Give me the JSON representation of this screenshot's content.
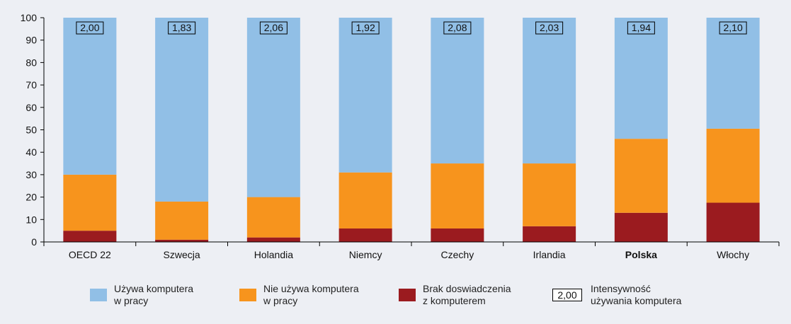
{
  "chart_data": {
    "type": "bar",
    "stacked": true,
    "categories": [
      "OECD 22",
      "Szwecja",
      "Holandia",
      "Niemcy",
      "Czechy",
      "Irlandia",
      "Polska",
      "Włochy"
    ],
    "highlight_category": "Polska",
    "series": [
      {
        "name_lines": [
          "Brak doswiadczenia",
          "z komputerem"
        ],
        "color": "#9b1b1f",
        "values": [
          5,
          1,
          2,
          6,
          6,
          7,
          13,
          17.5
        ]
      },
      {
        "name_lines": [
          "Nie używa komputera",
          "w pracy"
        ],
        "color": "#f7941d",
        "values": [
          25,
          17,
          18,
          25,
          29,
          28,
          33,
          33
        ]
      },
      {
        "name_lines": [
          "Używa komputera",
          "w pracy"
        ],
        "color": "#91bfe6",
        "values": [
          70,
          82,
          80,
          69,
          65,
          65,
          54,
          49.5
        ]
      }
    ],
    "annotations": {
      "label_lines": [
        "Intensywność",
        "używania komputera"
      ],
      "sample": "2,00",
      "values": [
        "2,00",
        "1,83",
        "2,06",
        "1,92",
        "2,08",
        "2,03",
        "1,94",
        "2,10"
      ]
    },
    "ylim": [
      0,
      100
    ],
    "yticks": [
      "0",
      "10",
      "20",
      "30",
      "40",
      "50",
      "60",
      "70",
      "80",
      "90",
      "100"
    ],
    "grid": false,
    "legend_position": "bottom"
  }
}
